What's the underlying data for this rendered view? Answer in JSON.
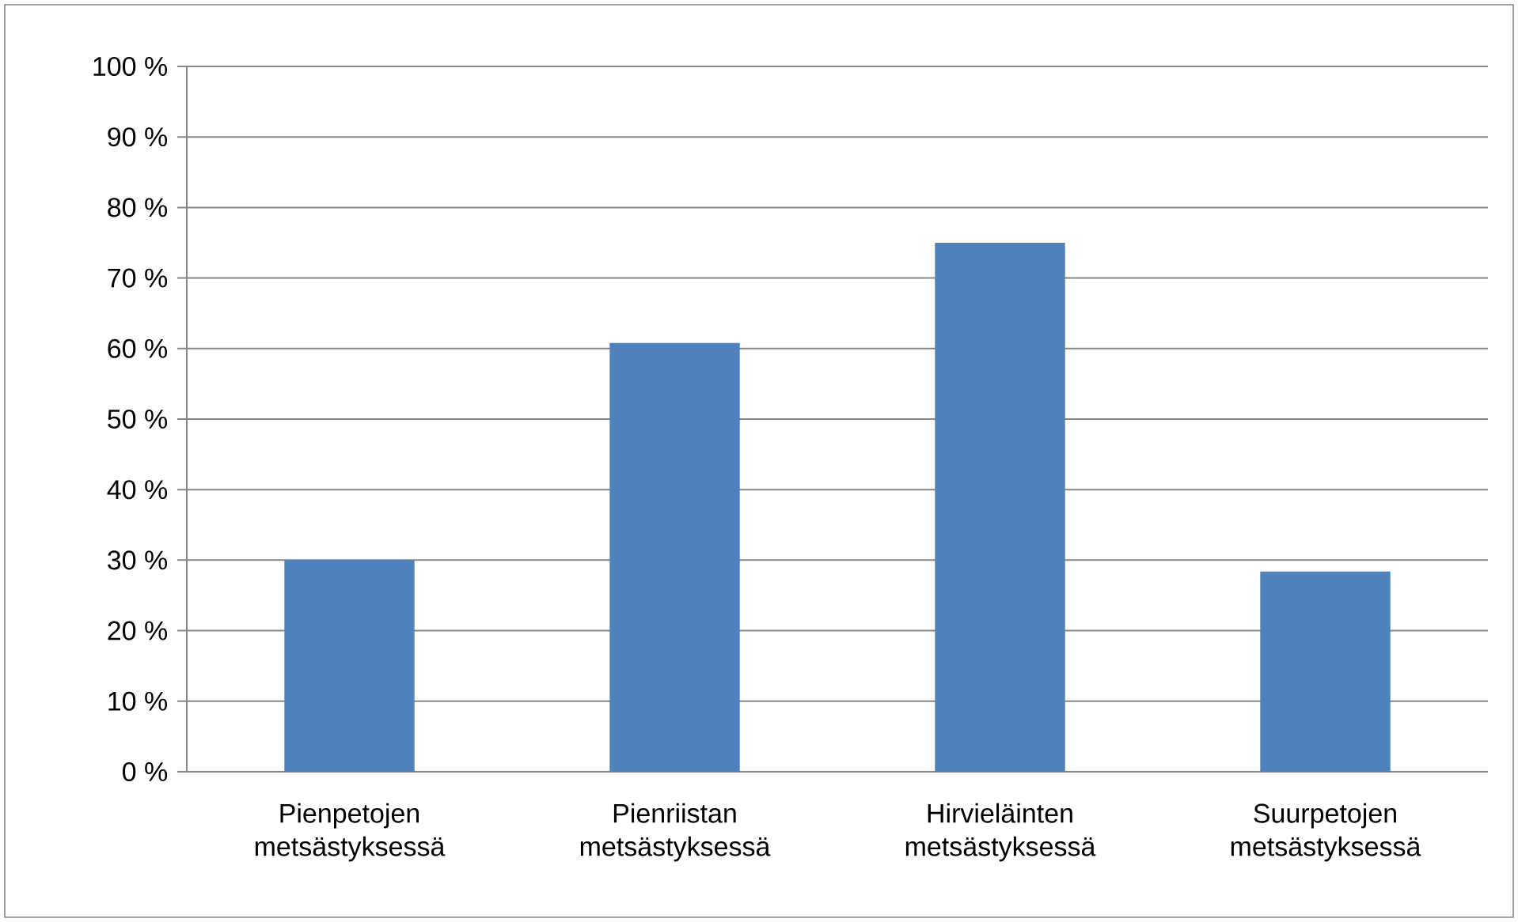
{
  "chart_data": {
    "type": "bar",
    "categories": [
      "Pienpetojen metsästyksessä",
      "Pienriistan metsästyksessä",
      "Hirvieläinten metsästyksessä",
      "Suurpetojen metsästyksessä"
    ],
    "values": [
      30,
      60.8,
      75,
      28.4
    ],
    "color": "#4f81bd",
    "ylim": [
      0,
      100
    ],
    "yticks": [
      {
        "value": 0,
        "label": "0 %"
      },
      {
        "value": 10,
        "label": "10 %"
      },
      {
        "value": 20,
        "label": "20 %"
      },
      {
        "value": 30,
        "label": "30 %"
      },
      {
        "value": 40,
        "label": "40 %"
      },
      {
        "value": 50,
        "label": "50 %"
      },
      {
        "value": 60,
        "label": "60 %"
      },
      {
        "value": 70,
        "label": "70 %"
      },
      {
        "value": 80,
        "label": "80 %"
      },
      {
        "value": 90,
        "label": "90 %"
      },
      {
        "value": 100,
        "label": "100 %"
      }
    ],
    "grid": "y"
  }
}
